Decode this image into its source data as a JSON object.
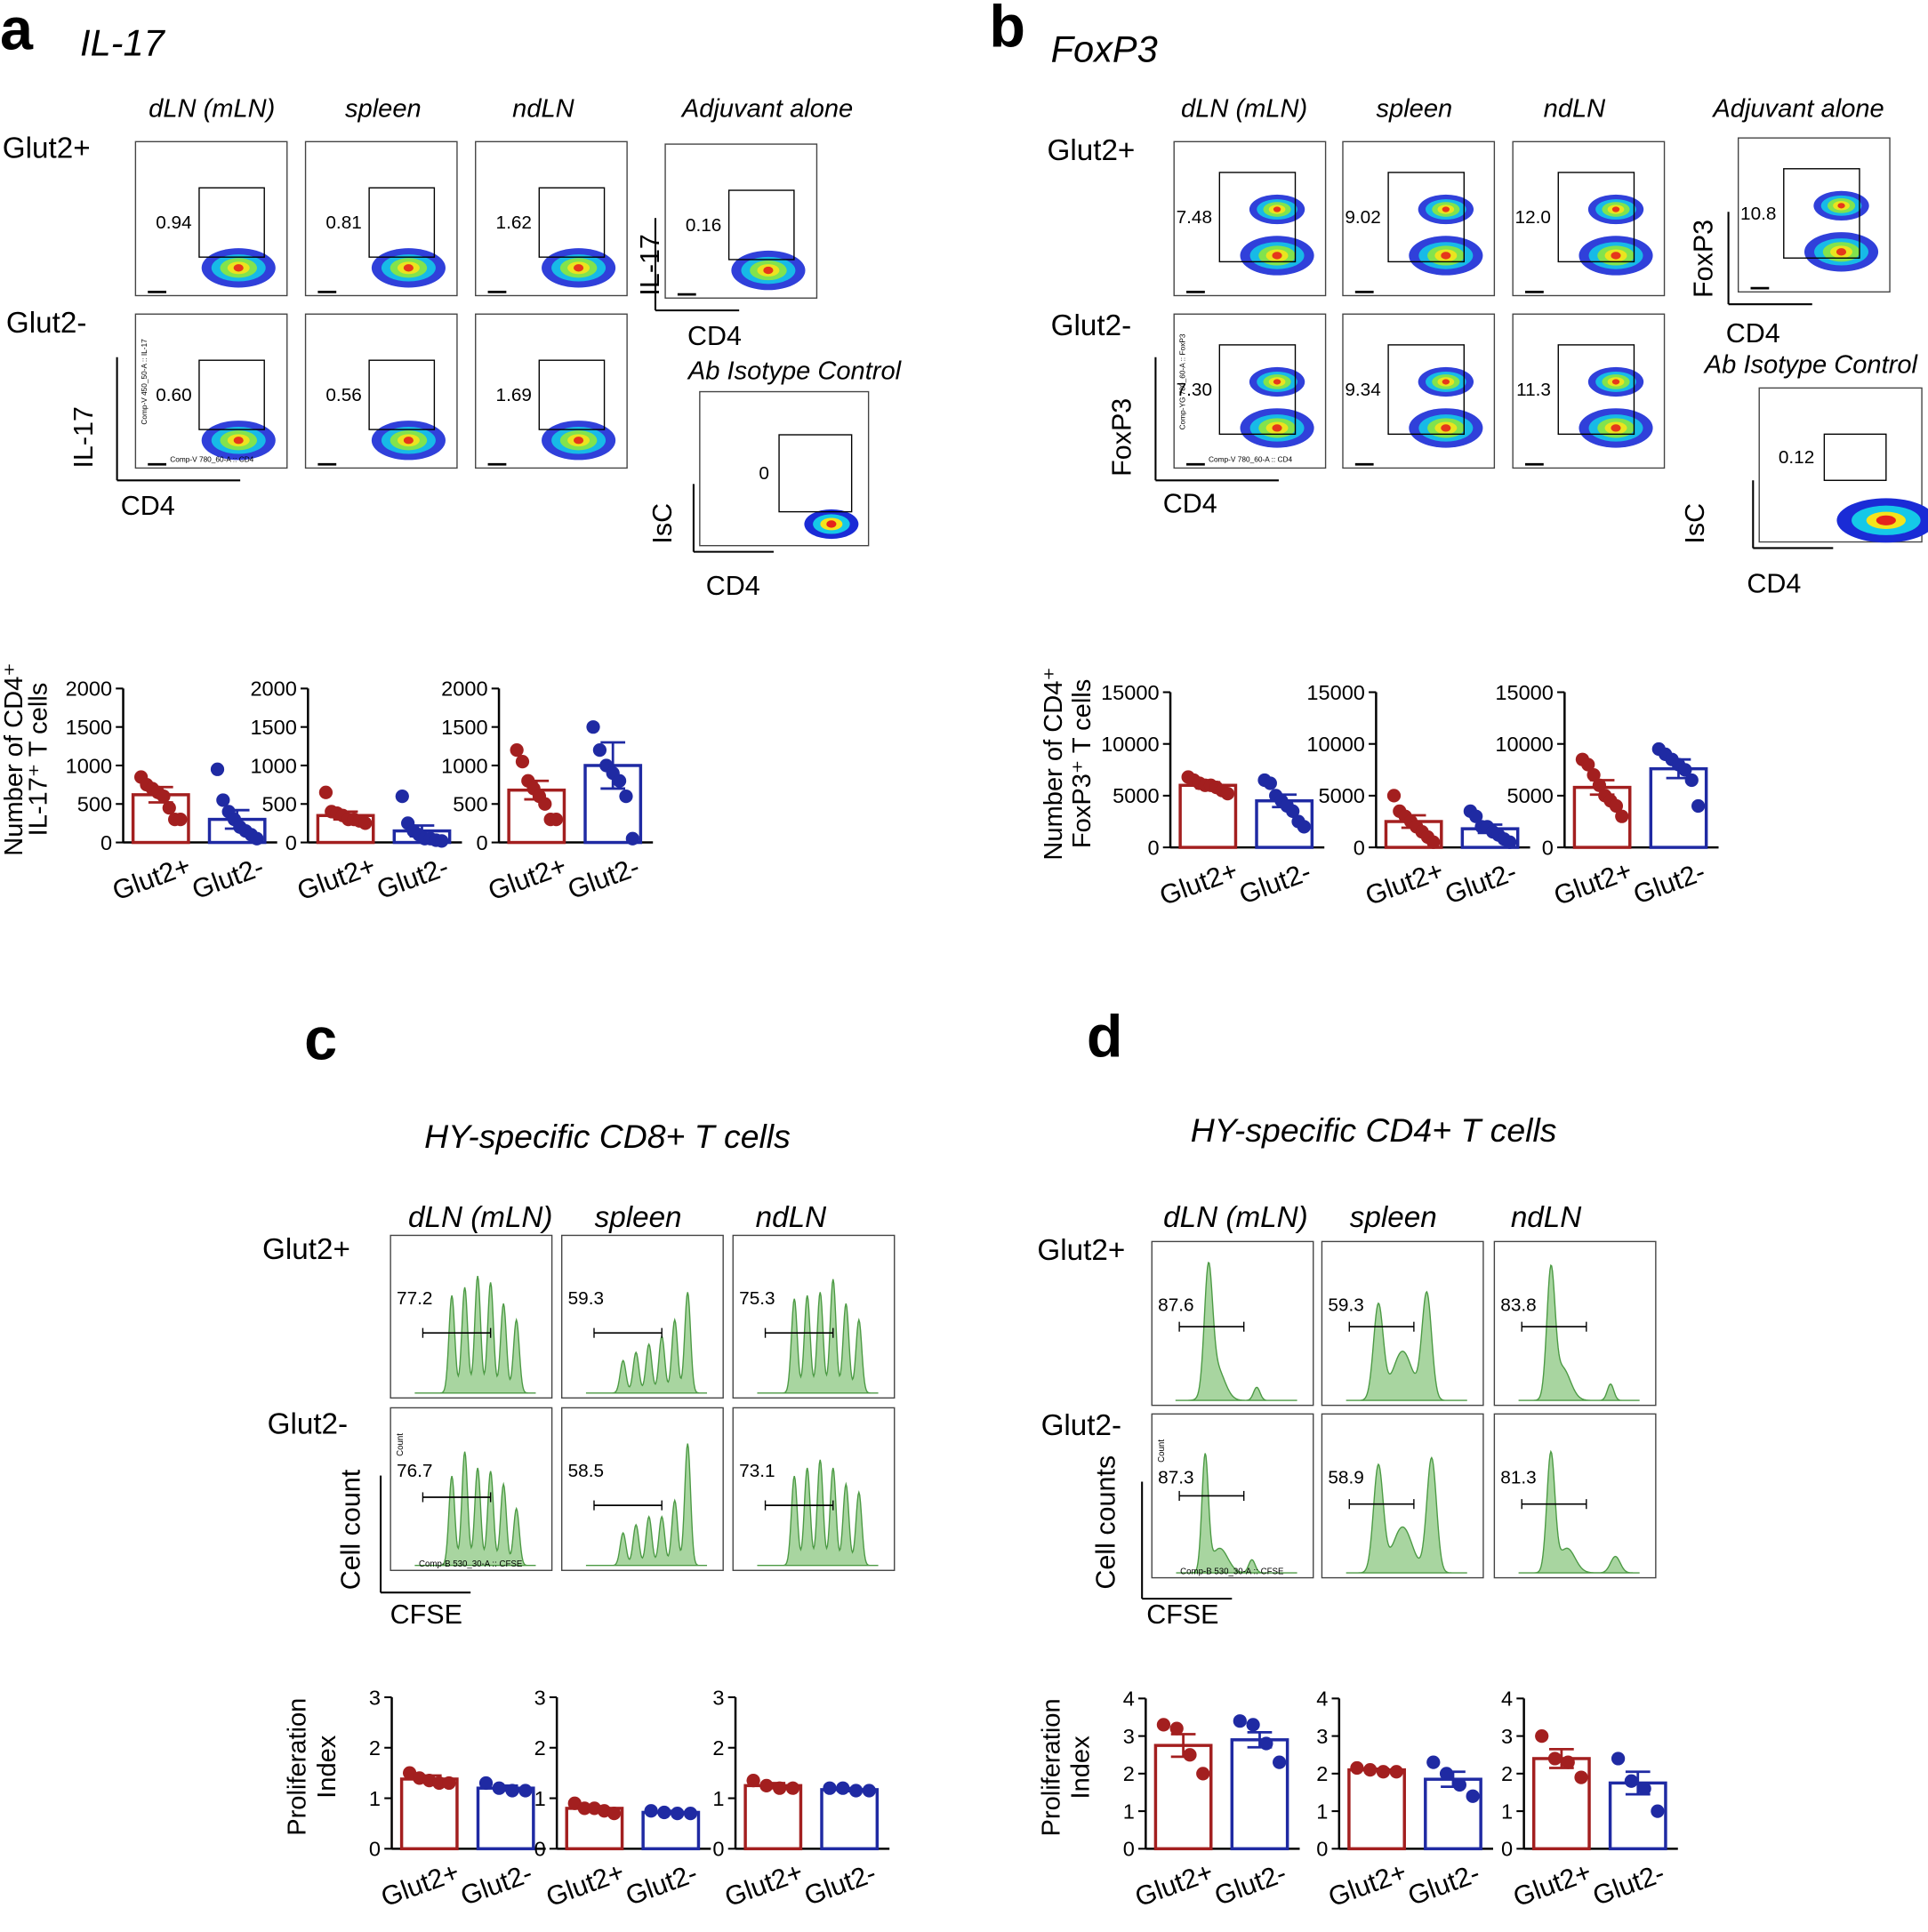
{
  "panels": [
    {
      "letter": "a",
      "title": "IL-17",
      "columns": [
        "dLN (mLN)",
        "spleen",
        "ndLN",
        "Adjuvant alone"
      ],
      "rows": [
        "Glut2+",
        "Glut2-"
      ],
      "gates": [
        [
          "0.94",
          "0.81",
          "1.62",
          "0.16"
        ],
        [
          "0.60",
          "0.56",
          "1.69"
        ]
      ],
      "control_title": "Ab Isotype Control",
      "control_gate": "0",
      "y_label": "IL-17",
      "x_label": "CD4",
      "control_y_label": "IsC",
      "inner_y": "Comp-V 450_50-A :: IL-17",
      "inner_x": "Comp-V 780_60-A :: CD4"
    },
    {
      "letter": "b",
      "title": "FoxP3",
      "columns": [
        "dLN (mLN)",
        "spleen",
        "ndLN",
        "Adjuvant alone"
      ],
      "rows": [
        "Glut2+",
        "Glut2-"
      ],
      "gates": [
        [
          "7.48",
          "9.02",
          "12.0",
          "10.8"
        ],
        [
          "7.30",
          "9.34",
          "11.3"
        ]
      ],
      "control_title": "Ab Isotype Control",
      "control_gate": "0.12",
      "y_label": "FoxP3",
      "x_label": "CD4",
      "control_y_label": "IsC",
      "inner_y": "Comp-YG 780_60-A :: FoxP3",
      "inner_x": "Comp-V 780_60-A :: CD4"
    },
    {
      "letter": "c",
      "title": "HY-specific CD8+ T cells",
      "columns": [
        "dLN (mLN)",
        "spleen",
        "ndLN"
      ],
      "rows": [
        "Glut2+",
        "Glut2-"
      ],
      "gates": [
        [
          "77.2",
          "59.3",
          "75.3"
        ],
        [
          "76.7",
          "58.5",
          "73.1"
        ]
      ],
      "y_label": "Cell count",
      "x_label": "CFSE",
      "inner_y": "Count",
      "inner_x": "Comp-B 530_30-A :: CFSE"
    },
    {
      "letter": "d",
      "title": "HY-specific CD4+ T cells",
      "columns": [
        "dLN (mLN)",
        "spleen",
        "ndLN"
      ],
      "rows": [
        "Glut2+",
        "Glut2-"
      ],
      "gates": [
        [
          "87.6",
          "59.3",
          "83.8"
        ],
        [
          "87.3",
          "58.9",
          "81.3"
        ]
      ],
      "y_label": "Cell counts",
      "x_label": "CFSE",
      "inner_y": "Count",
      "inner_x": "Comp-B 530_30-A :: CFSE"
    }
  ],
  "chart_data": [
    {
      "type": "bar",
      "y_label": [
        "Number of CD4⁺",
        "IL-17⁺ T cells"
      ],
      "categories": [
        "Glut2+",
        "Glut2-"
      ],
      "colors": [
        "#a31f1f",
        "#1f2aa3"
      ],
      "values": [
        620,
        300
      ],
      "errors": [
        100,
        120
      ],
      "points": [
        [
          850,
          750,
          700,
          650,
          600,
          450,
          300,
          300
        ],
        [
          950,
          550,
          400,
          300,
          200,
          150,
          100,
          50
        ]
      ],
      "ylim": [
        0,
        2000
      ],
      "yticks": [
        0,
        500,
        1000,
        1500,
        2000
      ]
    },
    {
      "type": "bar",
      "categories": [
        "Glut2+",
        "Glut2-"
      ],
      "colors": [
        "#a31f1f",
        "#1f2aa3"
      ],
      "values": [
        350,
        150
      ],
      "errors": [
        50,
        70
      ],
      "points": [
        [
          650,
          400,
          380,
          350,
          300,
          300,
          280,
          250
        ],
        [
          600,
          250,
          150,
          100,
          50,
          50,
          30,
          20
        ]
      ],
      "ylim": [
        0,
        2000
      ],
      "yticks": [
        0,
        500,
        1000,
        1500,
        2000
      ]
    },
    {
      "type": "bar",
      "categories": [
        "Glut2+",
        "Glut2-"
      ],
      "colors": [
        "#a31f1f",
        "#1f2aa3"
      ],
      "values": [
        680,
        1000
      ],
      "errors": [
        120,
        300
      ],
      "points": [
        [
          1200,
          1050,
          800,
          700,
          600,
          500,
          300,
          300
        ],
        [
          1500,
          1200,
          1000,
          900,
          800,
          600,
          50
        ]
      ],
      "ylim": [
        0,
        2000
      ],
      "yticks": [
        0,
        500,
        1000,
        1500,
        2000
      ]
    },
    {
      "type": "bar",
      "y_label": [
        "Number of CD4⁺",
        "FoxP3⁺ T cells"
      ],
      "categories": [
        "Glut2+",
        "Glut2-"
      ],
      "colors": [
        "#a31f1f",
        "#1f2aa3"
      ],
      "values": [
        6000,
        4500
      ],
      "errors": [
        300,
        600
      ],
      "points": [
        [
          6800,
          6500,
          6200,
          6000,
          6000,
          5800,
          5500,
          5200
        ],
        [
          6500,
          6200,
          5000,
          4500,
          4000,
          3500,
          2500,
          2000
        ]
      ],
      "ylim": [
        0,
        15000
      ],
      "yticks": [
        0,
        5000,
        10000,
        15000
      ]
    },
    {
      "type": "bar",
      "categories": [
        "Glut2+",
        "Glut2-"
      ],
      "colors": [
        "#a31f1f",
        "#1f2aa3"
      ],
      "values": [
        2500,
        1800
      ],
      "errors": [
        600,
        400
      ],
      "points": [
        [
          5000,
          3500,
          3000,
          2500,
          2000,
          1500,
          1000,
          500
        ],
        [
          3500,
          3000,
          2000,
          2000,
          1500,
          1200,
          800,
          500
        ]
      ],
      "ylim": [
        0,
        15000
      ],
      "yticks": [
        0,
        5000,
        10000,
        15000
      ]
    },
    {
      "type": "bar",
      "categories": [
        "Glut2+",
        "Glut2-"
      ],
      "colors": [
        "#a31f1f",
        "#1f2aa3"
      ],
      "values": [
        5800,
        7600
      ],
      "errors": [
        700,
        900
      ],
      "points": [
        [
          8500,
          8000,
          7000,
          6000,
          5000,
          4500,
          4000,
          3000
        ],
        [
          9500,
          9000,
          8500,
          8000,
          7500,
          6500,
          4000
        ]
      ],
      "ylim": [
        0,
        15000
      ],
      "yticks": [
        0,
        5000,
        10000,
        15000
      ]
    },
    {
      "type": "bar",
      "y_label": [
        "Proliferation",
        "Index"
      ],
      "categories": [
        "Glut2+",
        "Glut2-"
      ],
      "colors": [
        "#a31f1f",
        "#1f2aa3"
      ],
      "values": [
        1.38,
        1.2
      ],
      "errors": [
        0.07,
        0.05
      ],
      "points": [
        [
          1.5,
          1.4,
          1.35,
          1.3,
          1.3
        ],
        [
          1.3,
          1.2,
          1.15,
          1.15
        ]
      ],
      "ylim": [
        0,
        3
      ],
      "yticks": [
        0,
        1,
        2,
        3
      ]
    },
    {
      "type": "bar",
      "categories": [
        "Glut2+",
        "Glut2-"
      ],
      "colors": [
        "#a31f1f",
        "#1f2aa3"
      ],
      "values": [
        0.8,
        0.72
      ],
      "errors": [
        0.04,
        0.03
      ],
      "points": [
        [
          0.9,
          0.8,
          0.8,
          0.75,
          0.7
        ],
        [
          0.75,
          0.72,
          0.7,
          0.7
        ]
      ],
      "ylim": [
        0,
        3
      ],
      "yticks": [
        0,
        1,
        2,
        3
      ]
    },
    {
      "type": "bar",
      "categories": [
        "Glut2+",
        "Glut2-"
      ],
      "colors": [
        "#a31f1f",
        "#1f2aa3"
      ],
      "values": [
        1.25,
        1.17
      ],
      "errors": [
        0.05,
        0.03
      ],
      "points": [
        [
          1.35,
          1.25,
          1.2,
          1.2
        ],
        [
          1.2,
          1.2,
          1.15,
          1.15
        ]
      ],
      "ylim": [
        0,
        3
      ],
      "yticks": [
        0,
        1,
        2,
        3
      ]
    },
    {
      "type": "bar",
      "y_label": [
        "Proliferation",
        "Index"
      ],
      "categories": [
        "Glut2+",
        "Glut2-"
      ],
      "colors": [
        "#a31f1f",
        "#1f2aa3"
      ],
      "values": [
        2.75,
        2.9
      ],
      "errors": [
        0.3,
        0.2
      ],
      "points": [
        [
          3.3,
          3.2,
          2.5,
          2.0
        ],
        [
          3.4,
          3.3,
          2.8,
          2.3
        ]
      ],
      "ylim": [
        0,
        4
      ],
      "yticks": [
        0,
        1,
        2,
        3,
        4
      ]
    },
    {
      "type": "bar",
      "categories": [
        "Glut2+",
        "Glut2-"
      ],
      "colors": [
        "#a31f1f",
        "#1f2aa3"
      ],
      "values": [
        2.1,
        1.85
      ],
      "errors": [
        0.03,
        0.2
      ],
      "points": [
        [
          2.15,
          2.1,
          2.05,
          2.05
        ],
        [
          2.3,
          2.0,
          1.7,
          1.4
        ]
      ],
      "ylim": [
        0,
        4
      ],
      "yticks": [
        0,
        1,
        2,
        3,
        4
      ]
    },
    {
      "type": "bar",
      "categories": [
        "Glut2+",
        "Glut2-"
      ],
      "colors": [
        "#a31f1f",
        "#1f2aa3"
      ],
      "values": [
        2.4,
        1.75
      ],
      "errors": [
        0.25,
        0.3
      ],
      "points": [
        [
          3.0,
          2.4,
          2.3,
          1.9
        ],
        [
          2.4,
          1.8,
          1.6,
          1.0
        ]
      ],
      "ylim": [
        0,
        4
      ],
      "yticks": [
        0,
        1,
        2,
        3,
        4
      ]
    }
  ]
}
